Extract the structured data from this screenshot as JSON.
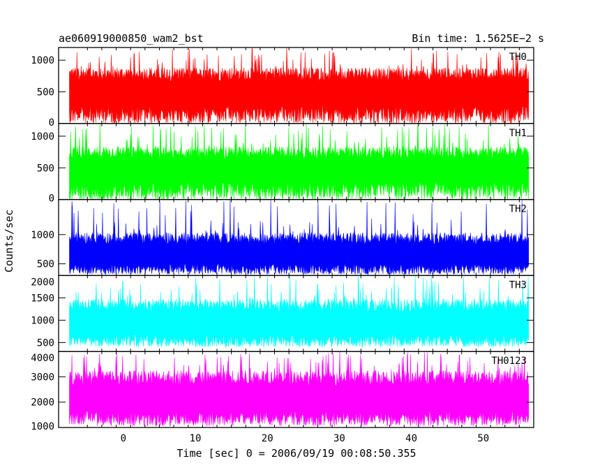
{
  "header": {
    "title": "ae060919000850_wam2_bst",
    "bin_time": "Bin time: 1.5625E−2 s"
  },
  "chart_data": {
    "type": "line",
    "style": "stacked light-curve panels (dense noise, shared x axis)",
    "xlabel": "Time [sec] 0 = 2006/09/19 00:08:50.355",
    "ylabel": "Counts/sec",
    "xlim": [
      -9,
      57
    ],
    "x_ticks": [
      0,
      10,
      20,
      30,
      40,
      50
    ],
    "x_data_range": [
      -7.5,
      56.3
    ],
    "panels": [
      {
        "name": "TH0",
        "color": "#ff0000",
        "ylim": [
          0,
          1200
        ],
        "y_ticks": [
          0,
          500,
          1000
        ],
        "baseline": 380,
        "typical_max": 900,
        "peak": 1200,
        "min": 0
      },
      {
        "name": "TH1",
        "color": "#00ff00",
        "ylim": [
          0,
          1200
        ],
        "y_ticks": [
          0,
          500,
          1000
        ],
        "baseline": 380,
        "typical_max": 850,
        "peak": 1200,
        "min": 0
      },
      {
        "name": "TH2",
        "color": "#0000ff",
        "ylim": [
          300,
          1600
        ],
        "y_ticks": [
          500,
          1000
        ],
        "baseline": 560,
        "typical_max": 1050,
        "peak": 1600,
        "min": 320
      },
      {
        "name": "TH3",
        "color": "#00ffff",
        "ylim": [
          300,
          2000
        ],
        "y_ticks": [
          500,
          1000,
          1500,
          2000
        ],
        "baseline": 780,
        "typical_max": 1500,
        "peak": 2000,
        "min": 400
      },
      {
        "name": "TH0123",
        "color": "#ff00ff",
        "ylim": [
          1000,
          4000
        ],
        "y_ticks": [
          1000,
          2000,
          3000,
          4000
        ],
        "baseline": 1850,
        "typical_max": 3300,
        "peak": 4000,
        "min": 1050
      }
    ]
  }
}
